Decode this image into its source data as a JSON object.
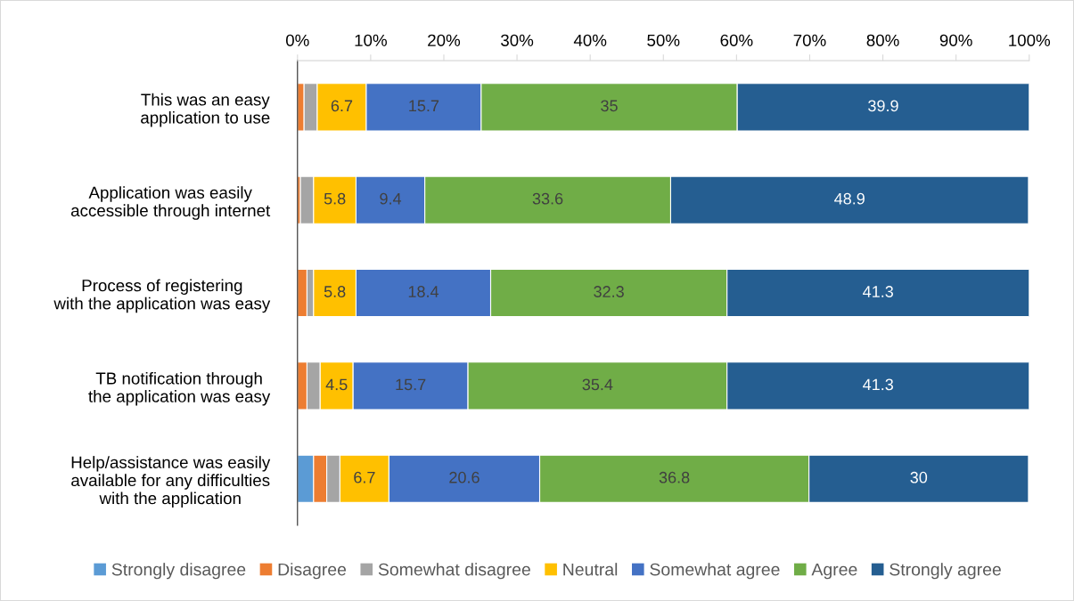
{
  "chart_data": {
    "type": "bar",
    "orientation": "horizontal",
    "stacked": true,
    "categories": [
      "This was an easy\napplication to use",
      "Application was easily\naccessible through internet",
      "Process of registering\nwith the application was easy",
      "TB notification through\nthe application was easy",
      "Help/assistance was easily\navailable for any difficulties\nwith the application"
    ],
    "series": [
      {
        "name": "Strongly disagree",
        "color": "#5b9bd5",
        "values": [
          null,
          null,
          null,
          null,
          2.2
        ]
      },
      {
        "name": "Disagree",
        "color": "#ed7d31",
        "values": [
          0.9,
          0.4,
          1.3,
          1.3,
          1.8
        ]
      },
      {
        "name": "Somewhat disagree",
        "color": "#a5a5a5",
        "values": [
          1.8,
          1.8,
          0.9,
          1.8,
          1.8
        ]
      },
      {
        "name": "Neutral",
        "color": "#ffc000",
        "values": [
          6.7,
          5.8,
          5.8,
          4.5,
          6.7
        ],
        "value_labels": [
          "6.7",
          "5.8",
          "5.8",
          "4.5",
          "6.7"
        ]
      },
      {
        "name": "Somewhat agree",
        "color": "#4472c4",
        "values": [
          15.7,
          9.4,
          18.4,
          15.7,
          20.6
        ],
        "value_labels": [
          "15.7",
          "9.4",
          "18.4",
          "15.7",
          "20.6"
        ]
      },
      {
        "name": "Agree",
        "color": "#70ad47",
        "values": [
          35,
          33.6,
          32.3,
          35.4,
          36.8
        ],
        "value_labels": [
          "35",
          "33.6",
          "32.3",
          "35.4",
          "36.8"
        ]
      },
      {
        "name": "Strongly agree",
        "color": "#255e91",
        "values": [
          39.9,
          48.9,
          41.3,
          41.3,
          30
        ],
        "value_labels": [
          "39.9",
          "48.9",
          "41.3",
          "41.3",
          "30"
        ]
      }
    ],
    "xlim": [
      0,
      100
    ],
    "xticks": [
      {
        "value": 0,
        "label": "0%"
      },
      {
        "value": 10,
        "label": "10%"
      },
      {
        "value": 20,
        "label": "20%"
      },
      {
        "value": 30,
        "label": "30%"
      },
      {
        "value": 40,
        "label": "40%"
      },
      {
        "value": 50,
        "label": "50%"
      },
      {
        "value": 60,
        "label": "60%"
      },
      {
        "value": 70,
        "label": "70%"
      },
      {
        "value": 80,
        "label": "80%"
      },
      {
        "value": 90,
        "label": "90%"
      },
      {
        "value": 100,
        "label": "100%"
      }
    ],
    "legend": "bottom"
  }
}
